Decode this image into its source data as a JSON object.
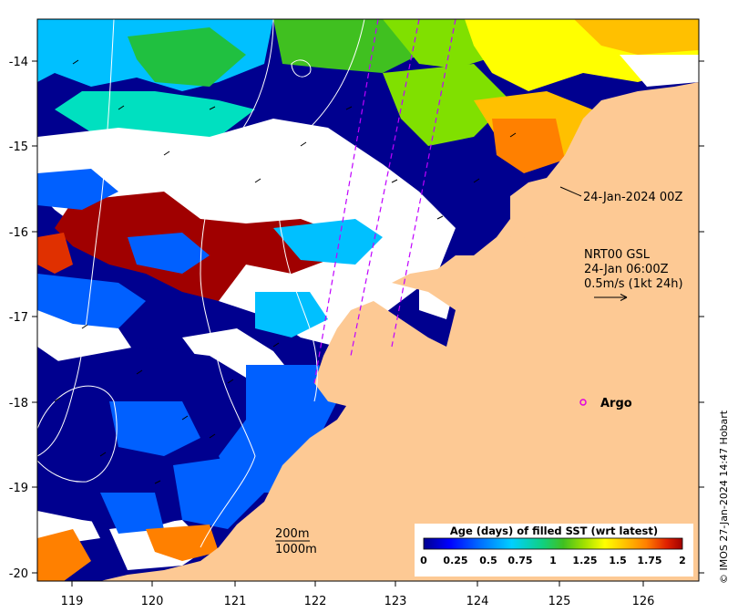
{
  "map": {
    "x_ticks": [
      "119",
      "120",
      "121",
      "122",
      "123",
      "124",
      "125",
      "126"
    ],
    "y_ticks": [
      "-14",
      "-15",
      "-16",
      "-17",
      "-18",
      "-19",
      "-20"
    ],
    "land_color": "#fdc994",
    "ocean_white": "#ffffff"
  },
  "annotations": {
    "track_time": "24-Jan-2024 00Z",
    "current_source": "NRT00 GSL",
    "current_time": "24-Jan 06:00Z",
    "current_scale": "0.5m/s (1kt 24h)",
    "argo_label": "Argo",
    "contour_200": "200m",
    "contour_1000": "1000m"
  },
  "colorbar": {
    "title": "Age (days) of filled SST (wrt latest)",
    "ticks": [
      "0",
      "0.25",
      "0.5",
      "0.75",
      "1",
      "1.25",
      "1.5",
      "1.75",
      "2"
    ],
    "colors": [
      "#00008f",
      "#0000ff",
      "#0060ff",
      "#00c0ff",
      "#00e0c0",
      "#20c040",
      "#80e000",
      "#ffff00",
      "#ffc000",
      "#ff8000",
      "#e03000",
      "#a00000"
    ]
  },
  "credit": "© IMOS 27-Jan-2024 14:47 Hobart"
}
